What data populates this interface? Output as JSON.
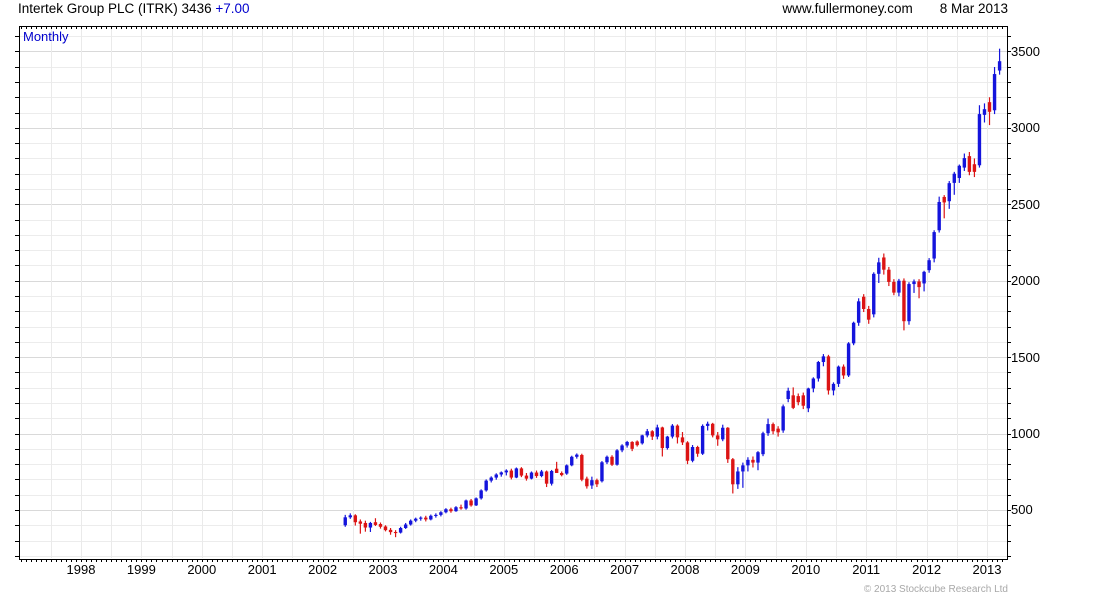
{
  "header": {
    "title_main": "Intertek Group PLC (ITRK) 3436 ",
    "title_change": "+7.00",
    "site": "www.fullermoney.com",
    "date": "8 Mar 2013"
  },
  "chart": {
    "interval_label": "Monthly"
  },
  "footer": {
    "copyright": "© 2013 Stockcube Research Ltd"
  },
  "colors": {
    "up": "#1414dc",
    "down": "#dc1414",
    "grid_minor": "#ececec",
    "grid_major": "#d9d9d9",
    "grid_vertical": "#eaeaea",
    "border": "#000000",
    "accent_blue": "#0000cd"
  },
  "chart_data": {
    "type": "candlestick",
    "title": "Intertek Group PLC (ITRK) 3436 +7.00",
    "instrument": "Intertek Group PLC",
    "ticker": "ITRK",
    "last_price": 3436,
    "change": "+7.00",
    "interval": "Monthly",
    "legend_position": "top-left",
    "grid": true,
    "y_axis": {
      "side": "right",
      "tick_labels": [
        3500,
        3000,
        2500,
        2000,
        1500,
        1000,
        500
      ],
      "minor_step": 100,
      "major_step": 500,
      "range": [
        180,
        3665
      ]
    },
    "x_axis": {
      "year_labels": [
        1998,
        1999,
        2000,
        2001,
        2002,
        2003,
        2004,
        2005,
        2006,
        2007,
        2008,
        2009,
        2010,
        2011,
        2012,
        2013
      ],
      "range_years": [
        1997.0,
        2013.33
      ],
      "minor_tick": "month"
    },
    "candles_format": [
      "month",
      "open",
      "high",
      "low",
      "close"
    ],
    "candles": [
      [
        "2002-05",
        400,
        468,
        390,
        452
      ],
      [
        "2002-06",
        452,
        478,
        442,
        465
      ],
      [
        "2002-07",
        465,
        472,
        398,
        420
      ],
      [
        "2002-08",
        425,
        438,
        345,
        410
      ],
      [
        "2002-09",
        415,
        430,
        358,
        385
      ],
      [
        "2002-10",
        385,
        422,
        356,
        415
      ],
      [
        "2002-11",
        420,
        446,
        395,
        402
      ],
      [
        "2002-12",
        408,
        418,
        378,
        390
      ],
      [
        "2003-01",
        392,
        400,
        360,
        368
      ],
      [
        "2003-02",
        370,
        382,
        338,
        355
      ],
      [
        "2003-03",
        356,
        368,
        322,
        350
      ],
      [
        "2003-04",
        352,
        390,
        346,
        382
      ],
      [
        "2003-05",
        382,
        415,
        376,
        405
      ],
      [
        "2003-06",
        405,
        438,
        398,
        430
      ],
      [
        "2003-07",
        430,
        450,
        420,
        443
      ],
      [
        "2003-08",
        443,
        458,
        430,
        450
      ],
      [
        "2003-09",
        450,
        462,
        425,
        438
      ],
      [
        "2003-10",
        438,
        470,
        432,
        462
      ],
      [
        "2003-11",
        462,
        478,
        450,
        468
      ],
      [
        "2003-12",
        468,
        492,
        458,
        485
      ],
      [
        "2004-01",
        485,
        512,
        478,
        505
      ],
      [
        "2004-02",
        505,
        515,
        482,
        492
      ],
      [
        "2004-03",
        492,
        525,
        488,
        518
      ],
      [
        "2004-04",
        518,
        535,
        502,
        510
      ],
      [
        "2004-05",
        510,
        568,
        502,
        562
      ],
      [
        "2004-06",
        562,
        572,
        522,
        530
      ],
      [
        "2004-07",
        530,
        582,
        526,
        576
      ],
      [
        "2004-08",
        576,
        635,
        568,
        628
      ],
      [
        "2004-09",
        628,
        700,
        620,
        692
      ],
      [
        "2004-10",
        692,
        720,
        680,
        712
      ],
      [
        "2004-11",
        712,
        740,
        698,
        732
      ],
      [
        "2004-12",
        732,
        752,
        718,
        746
      ],
      [
        "2005-01",
        746,
        766,
        726,
        758
      ],
      [
        "2005-02",
        758,
        770,
        700,
        712
      ],
      [
        "2005-03",
        712,
        778,
        708,
        772
      ],
      [
        "2005-04",
        772,
        780,
        715,
        725
      ],
      [
        "2005-05",
        725,
        742,
        692,
        705
      ],
      [
        "2005-06",
        705,
        752,
        700,
        745
      ],
      [
        "2005-07",
        745,
        758,
        710,
        722
      ],
      [
        "2005-08",
        722,
        762,
        714,
        752
      ],
      [
        "2005-09",
        752,
        758,
        650,
        672
      ],
      [
        "2005-10",
        672,
        762,
        660,
        755
      ],
      [
        "2005-11",
        770,
        815,
        745,
        742
      ],
      [
        "2005-12",
        742,
        752,
        720,
        728
      ],
      [
        "2006-01",
        738,
        798,
        730,
        792
      ],
      [
        "2006-02",
        792,
        855,
        786,
        848
      ],
      [
        "2006-03",
        848,
        870,
        836,
        862
      ],
      [
        "2006-04",
        860,
        868,
        688,
        698
      ],
      [
        "2006-05",
        705,
        718,
        640,
        655
      ],
      [
        "2006-06",
        660,
        718,
        638,
        695
      ],
      [
        "2006-07",
        695,
        705,
        650,
        668
      ],
      [
        "2006-08",
        688,
        820,
        680,
        812
      ],
      [
        "2006-09",
        812,
        856,
        800,
        848
      ],
      [
        "2006-10",
        848,
        858,
        788,
        796
      ],
      [
        "2006-11",
        796,
        898,
        790,
        890
      ],
      [
        "2006-12",
        890,
        930,
        878,
        922
      ],
      [
        "2007-01",
        922,
        952,
        908,
        945
      ],
      [
        "2007-02",
        945,
        950,
        885,
        900
      ],
      [
        "2007-03",
        948,
        955,
        915,
        924
      ],
      [
        "2007-04",
        936,
        992,
        928,
        988
      ],
      [
        "2007-05",
        988,
        1030,
        975,
        1015
      ],
      [
        "2007-06",
        1015,
        1022,
        958,
        980
      ],
      [
        "2007-07",
        980,
        1058,
        962,
        1040
      ],
      [
        "2007-08",
        1040,
        1045,
        850,
        905
      ],
      [
        "2007-09",
        905,
        985,
        895,
        980
      ],
      [
        "2007-10",
        980,
        1062,
        968,
        1052
      ],
      [
        "2007-11",
        1052,
        1060,
        935,
        975
      ],
      [
        "2007-12",
        975,
        1010,
        925,
        942
      ],
      [
        "2008-01",
        942,
        950,
        800,
        822
      ],
      [
        "2008-02",
        822,
        925,
        812,
        912
      ],
      [
        "2008-03",
        912,
        920,
        848,
        868
      ],
      [
        "2008-04",
        868,
        1060,
        860,
        1050
      ],
      [
        "2008-05",
        1050,
        1078,
        1020,
        1064
      ],
      [
        "2008-06",
        1064,
        1070,
        975,
        988
      ],
      [
        "2008-07",
        988,
        1010,
        920,
        962
      ],
      [
        "2008-08",
        962,
        1058,
        950,
        1038
      ],
      [
        "2008-09",
        1038,
        1042,
        808,
        832
      ],
      [
        "2008-10",
        832,
        840,
        608,
        668
      ],
      [
        "2008-11",
        668,
        780,
        638,
        752
      ],
      [
        "2008-12",
        752,
        810,
        645,
        792
      ],
      [
        "2009-01",
        792,
        845,
        752,
        828
      ],
      [
        "2009-02",
        828,
        850,
        778,
        810
      ],
      [
        "2009-03",
        810,
        885,
        760,
        878
      ],
      [
        "2009-04",
        865,
        1012,
        852,
        1002
      ],
      [
        "2009-05",
        1002,
        1098,
        985,
        1062
      ],
      [
        "2009-06",
        1062,
        1072,
        995,
        1015
      ],
      [
        "2009-07",
        1032,
        1048,
        980,
        1008
      ],
      [
        "2009-08",
        1020,
        1190,
        1005,
        1178
      ],
      [
        "2009-09",
        1226,
        1300,
        1205,
        1280
      ],
      [
        "2009-10",
        1250,
        1302,
        1160,
        1168
      ],
      [
        "2009-11",
        1245,
        1262,
        1185,
        1205
      ],
      [
        "2009-12",
        1250,
        1268,
        1160,
        1182
      ],
      [
        "2010-01",
        1165,
        1300,
        1140,
        1295
      ],
      [
        "2010-02",
        1295,
        1368,
        1270,
        1360
      ],
      [
        "2010-03",
        1360,
        1475,
        1340,
        1468
      ],
      [
        "2010-04",
        1468,
        1520,
        1440,
        1505
      ],
      [
        "2010-05",
        1505,
        1515,
        1255,
        1282
      ],
      [
        "2010-06",
        1282,
        1335,
        1250,
        1325
      ],
      [
        "2010-07",
        1325,
        1445,
        1305,
        1438
      ],
      [
        "2010-08",
        1438,
        1452,
        1358,
        1380
      ],
      [
        "2010-09",
        1380,
        1598,
        1370,
        1590
      ],
      [
        "2010-10",
        1590,
        1732,
        1578,
        1725
      ],
      [
        "2010-11",
        1725,
        1885,
        1705,
        1865
      ],
      [
        "2010-12",
        1895,
        1912,
        1795,
        1815
      ],
      [
        "2011-01",
        1815,
        1835,
        1718,
        1745
      ],
      [
        "2011-02",
        1780,
        2055,
        1760,
        2045
      ],
      [
        "2011-03",
        2045,
        2150,
        1985,
        2120
      ],
      [
        "2011-04",
        2152,
        2178,
        2040,
        2072
      ],
      [
        "2011-05",
        2072,
        2090,
        1965,
        1992
      ],
      [
        "2011-06",
        1992,
        2010,
        1905,
        1922
      ],
      [
        "2011-07",
        1922,
        2012,
        1898,
        2000
      ],
      [
        "2011-08",
        2000,
        2015,
        1675,
        1735
      ],
      [
        "2011-09",
        1735,
        1990,
        1712,
        1978
      ],
      [
        "2011-10",
        1978,
        2008,
        1920,
        1995
      ],
      [
        "2011-11",
        1995,
        2010,
        1885,
        1958
      ],
      [
        "2011-12",
        1982,
        2065,
        1930,
        2058
      ],
      [
        "2012-01",
        2069,
        2148,
        2052,
        2134
      ],
      [
        "2012-02",
        2145,
        2330,
        2120,
        2318
      ],
      [
        "2012-03",
        2330,
        2550,
        2315,
        2515
      ],
      [
        "2012-04",
        2548,
        2560,
        2408,
        2512
      ],
      [
        "2012-05",
        2520,
        2652,
        2470,
        2638
      ],
      [
        "2012-06",
        2640,
        2712,
        2562,
        2700
      ],
      [
        "2012-07",
        2672,
        2760,
        2640,
        2752
      ],
      [
        "2012-08",
        2740,
        2832,
        2718,
        2802
      ],
      [
        "2012-09",
        2815,
        2842,
        2690,
        2712
      ],
      [
        "2012-10",
        2762,
        2800,
        2678,
        2712
      ],
      [
        "2012-11",
        2755,
        3148,
        2740,
        3090
      ],
      [
        "2012-12",
        3085,
        3160,
        3035,
        3122
      ],
      [
        "2013-01",
        3168,
        3200,
        3018,
        3105
      ],
      [
        "2013-02",
        3115,
        3398,
        3090,
        3352
      ],
      [
        "2013-03",
        3375,
        3518,
        3348,
        3436
      ]
    ]
  }
}
